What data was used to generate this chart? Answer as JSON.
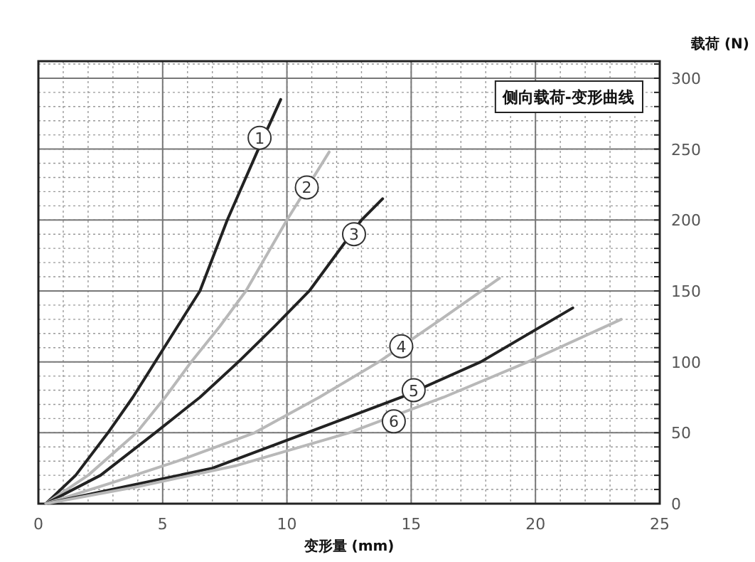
{
  "chart_data": {
    "type": "line",
    "title": "侧向载荷-变形曲线",
    "xlabel": "变形量 (mm)",
    "ylabel": "载荷 (N)",
    "xlim": [
      0,
      25
    ],
    "ylim": [
      0,
      312
    ],
    "xticks": [
      0,
      5,
      10,
      15,
      20,
      25
    ],
    "yticks": [
      0,
      50,
      100,
      150,
      200,
      250,
      300
    ],
    "grid": true,
    "marker": "none",
    "line_style": "solid",
    "annotations": [
      {
        "text": "1",
        "x": 8.9,
        "y": 258
      },
      {
        "text": "2",
        "x": 10.8,
        "y": 223
      },
      {
        "text": "3",
        "x": 12.7,
        "y": 190
      },
      {
        "text": "4",
        "x": 14.6,
        "y": 111
      },
      {
        "text": "5",
        "x": 15.1,
        "y": 80
      },
      {
        "text": "6",
        "x": 14.3,
        "y": 58
      }
    ],
    "series": [
      {
        "color": "#222222",
        "x": [
          0.3,
          1.5,
          2.8,
          3.8,
          4.7,
          5.6,
          6.5,
          7.6,
          8.85,
          9.75
        ],
        "values": [
          0,
          20,
          50,
          75,
          100,
          125,
          150,
          200,
          250,
          285
        ]
      },
      {
        "color": "#b8b8b8",
        "x": [
          0.3,
          2,
          3.95,
          5.1,
          6.15,
          7.3,
          8.35,
          10.0,
          11.7
        ],
        "values": [
          0,
          20,
          50,
          75,
          100,
          125,
          150,
          200,
          248
        ]
      },
      {
        "color": "#222222",
        "x": [
          0.3,
          2.5,
          4.7,
          6.5,
          8.05,
          9.5,
          10.9,
          13.0,
          13.85
        ],
        "values": [
          0,
          20,
          50,
          75,
          100,
          125,
          150,
          200,
          215
        ]
      },
      {
        "color": "#b8b8b8",
        "x": [
          0.3,
          3,
          5.6,
          8.7,
          11.3,
          13.7,
          16.2,
          18.55
        ],
        "values": [
          0,
          15,
          30,
          50,
          75,
          100,
          130,
          159
        ]
      },
      {
        "color": "#222222",
        "x": [
          0.3,
          3.5,
          7,
          10.8,
          14.6,
          17.8,
          21.5
        ],
        "values": [
          0,
          12,
          25,
          50,
          75,
          100,
          138
        ]
      },
      {
        "color": "#b8b8b8",
        "x": [
          0.3,
          4,
          8,
          12.5,
          16.3,
          19.7,
          23.45
        ],
        "values": [
          0,
          12,
          27,
          50,
          75,
          100,
          130
        ]
      }
    ]
  }
}
